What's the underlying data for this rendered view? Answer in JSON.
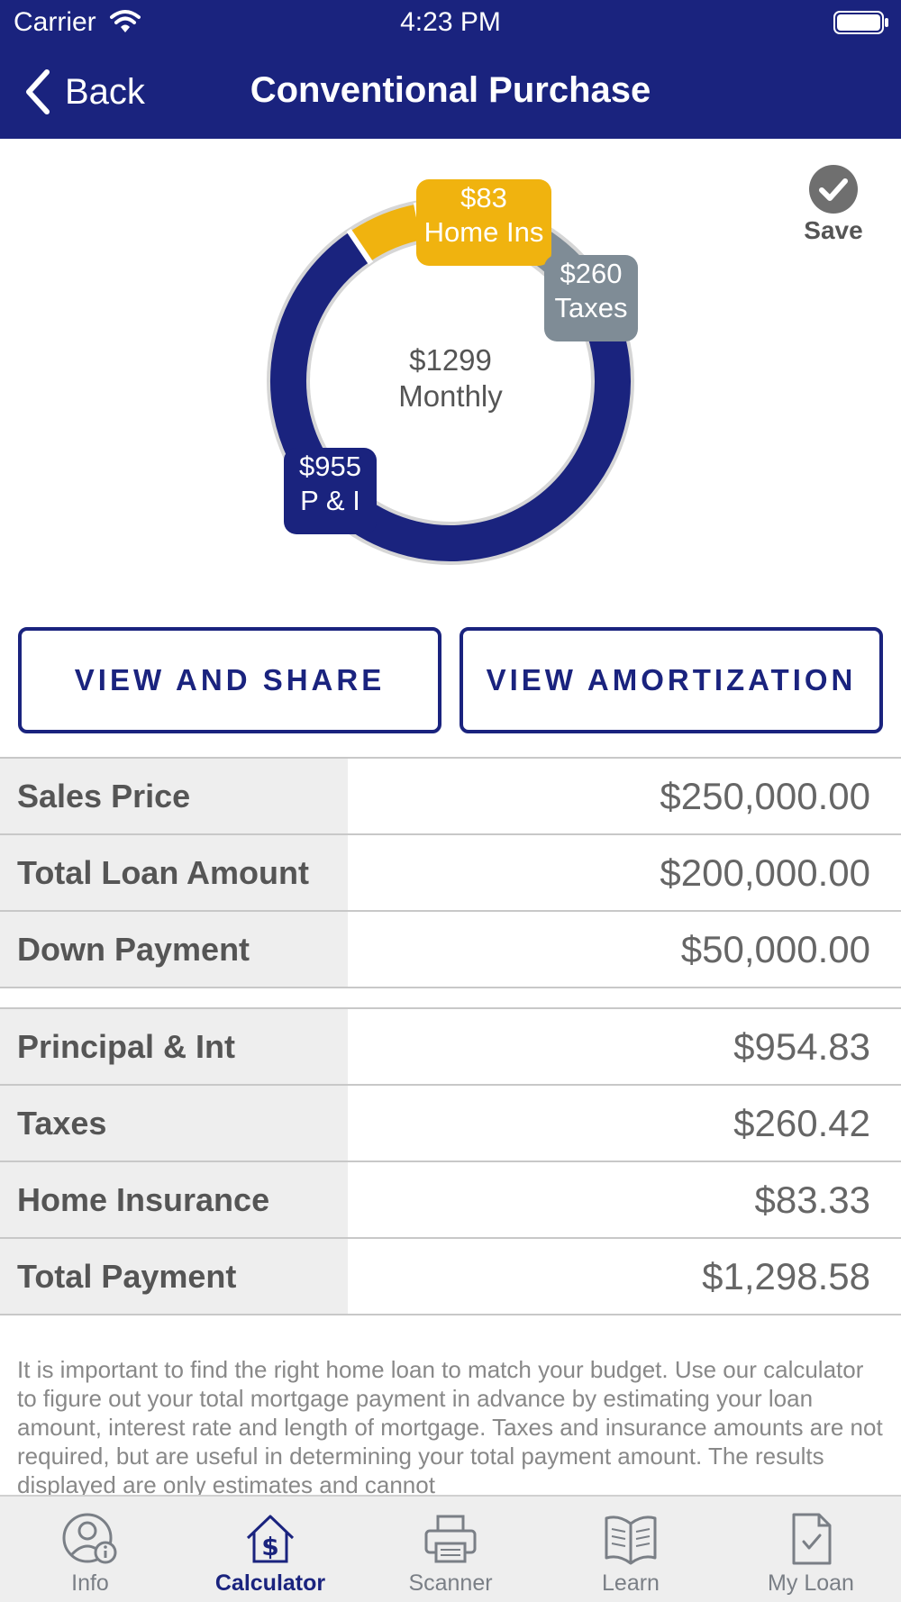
{
  "status_bar": {
    "carrier": "Carrier",
    "time": "4:23 PM"
  },
  "nav": {
    "back_label": "Back",
    "title": "Conventional Purchase"
  },
  "save": {
    "label": "Save"
  },
  "chart_data": {
    "type": "pie",
    "center_amount": "$1299",
    "center_label": "Monthly",
    "series": [
      {
        "label_amount": "$955",
        "label_name": "P & I",
        "value": 954.83,
        "color": "#1a237e"
      },
      {
        "label_amount": "$260",
        "label_name": "Taxes",
        "value": 260.42,
        "color": "#7f8c96"
      },
      {
        "label_amount": "$83",
        "label_name": "Home Ins",
        "value": 83.33,
        "color": "#f0b30f"
      }
    ]
  },
  "buttons": {
    "view_share": "VIEW AND SHARE",
    "view_amortization": "VIEW AMORTIZATION"
  },
  "loan_table": [
    {
      "label": "Sales Price",
      "value": "$250,000.00"
    },
    {
      "label": "Total Loan Amount",
      "value": "$200,000.00"
    },
    {
      "label": "Down Payment",
      "value": "$50,000.00"
    }
  ],
  "payment_table": [
    {
      "label": "Principal & Int",
      "value": "$954.83"
    },
    {
      "label": "Taxes",
      "value": "$260.42"
    },
    {
      "label": "Home Insurance",
      "value": "$83.33"
    },
    {
      "label": "Total Payment",
      "value": "$1,298.58"
    }
  ],
  "disclaimer": "It is important to find the right home loan to match your budget. Use our calculator to figure out your total mortgage payment in advance by estimating your loan amount, interest rate and length of mortgage. Taxes and insurance amounts are not required, but are useful in determining your total payment amount.  The results displayed are only estimates and cannot",
  "tabs": [
    {
      "label": "Info",
      "icon": "info-user-icon",
      "active": false
    },
    {
      "label": "Calculator",
      "icon": "calculator-house-icon",
      "active": true
    },
    {
      "label": "Scanner",
      "icon": "printer-icon",
      "active": false
    },
    {
      "label": "Learn",
      "icon": "book-icon",
      "active": false
    },
    {
      "label": "My Loan",
      "icon": "document-check-icon",
      "active": false
    }
  ]
}
